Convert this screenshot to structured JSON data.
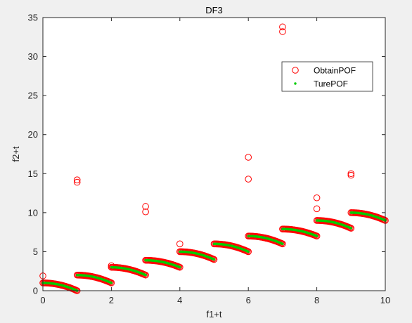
{
  "chart_data": {
    "type": "scatter",
    "title": "DF3",
    "xlabel": "f1+t",
    "ylabel": "f2+t",
    "xlim": [
      0,
      10
    ],
    "ylim": [
      0,
      35
    ],
    "xticks": [
      0,
      2,
      4,
      6,
      8,
      10
    ],
    "yticks": [
      0,
      5,
      10,
      15,
      20,
      25,
      30,
      35
    ],
    "grid": false,
    "legend_position": "top-right",
    "segments": [
      {
        "t": 0,
        "y_start": 1.0,
        "y_end": 0.0
      },
      {
        "t": 1,
        "y_start": 2.0,
        "y_end": 1.0
      },
      {
        "t": 2,
        "y_start": 3.0,
        "y_end": 2.0
      },
      {
        "t": 3,
        "y_start": 3.9,
        "y_end": 3.0
      },
      {
        "t": 4,
        "y_start": 5.0,
        "y_end": 4.0
      },
      {
        "t": 5,
        "y_start": 6.0,
        "y_end": 5.0
      },
      {
        "t": 6,
        "y_start": 7.0,
        "y_end": 6.0
      },
      {
        "t": 7,
        "y_start": 7.9,
        "y_end": 7.0
      },
      {
        "t": 8,
        "y_start": 9.0,
        "y_end": 8.0
      },
      {
        "t": 9,
        "y_start": 10.0,
        "y_end": 9.0
      }
    ],
    "series": [
      {
        "name": "ObtainPOF",
        "color": "#ff0000",
        "marker": "circle-open",
        "outliers": [
          {
            "x": 0.0,
            "y": 1.9
          },
          {
            "x": 1.0,
            "y": 14.2
          },
          {
            "x": 1.0,
            "y": 13.9
          },
          {
            "x": 2.0,
            "y": 3.2
          },
          {
            "x": 3.0,
            "y": 10.8
          },
          {
            "x": 3.0,
            "y": 10.1
          },
          {
            "x": 4.0,
            "y": 6.0
          },
          {
            "x": 6.0,
            "y": 17.1
          },
          {
            "x": 6.0,
            "y": 14.3
          },
          {
            "x": 7.0,
            "y": 33.8
          },
          {
            "x": 7.0,
            "y": 33.2
          },
          {
            "x": 8.0,
            "y": 11.9
          },
          {
            "x": 8.0,
            "y": 10.5
          },
          {
            "x": 9.0,
            "y": 15.0
          },
          {
            "x": 9.0,
            "y": 14.8
          }
        ]
      },
      {
        "name": "TurePOF",
        "color": "#00cc00",
        "marker": "dot"
      }
    ]
  }
}
